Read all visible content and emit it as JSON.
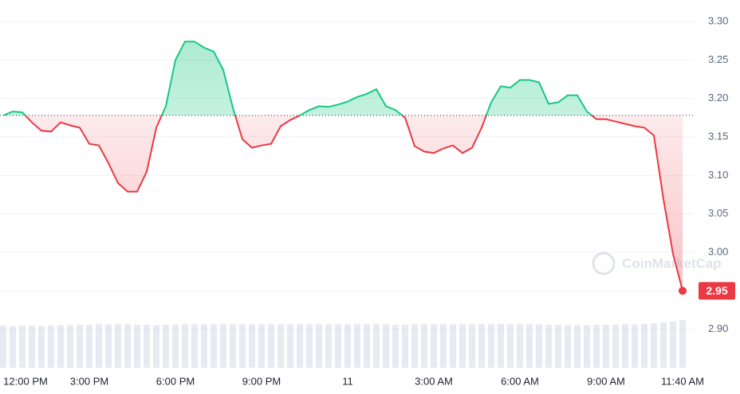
{
  "chart_data": {
    "type": "line",
    "categories": [
      "12:00 PM",
      null,
      null,
      null,
      null,
      null,
      null,
      null,
      null,
      "3:00 PM",
      null,
      null,
      null,
      null,
      null,
      null,
      null,
      null,
      "6:00 PM",
      null,
      null,
      null,
      null,
      null,
      null,
      null,
      null,
      "9:00 PM",
      null,
      null,
      null,
      null,
      null,
      null,
      null,
      null,
      "11",
      null,
      null,
      null,
      null,
      null,
      null,
      null,
      null,
      "3:00 AM",
      null,
      null,
      null,
      null,
      null,
      null,
      null,
      null,
      "6:00 AM",
      null,
      null,
      null,
      null,
      null,
      null,
      null,
      null,
      "9:00 AM",
      null,
      null,
      null,
      null,
      null,
      null,
      null,
      "11:40 AM"
    ],
    "values": [
      3.178,
      3.183,
      3.182,
      3.169,
      3.158,
      3.157,
      3.169,
      3.165,
      3.162,
      3.141,
      3.139,
      3.116,
      3.09,
      3.079,
      3.079,
      3.105,
      3.162,
      3.19,
      3.25,
      3.274,
      3.274,
      3.266,
      3.261,
      3.237,
      3.188,
      3.147,
      3.136,
      3.139,
      3.141,
      3.164,
      3.172,
      3.178,
      3.185,
      3.19,
      3.189,
      3.192,
      3.196,
      3.202,
      3.206,
      3.212,
      3.19,
      3.185,
      3.175,
      3.138,
      3.131,
      3.129,
      3.135,
      3.139,
      3.129,
      3.136,
      3.162,
      3.195,
      3.216,
      3.214,
      3.224,
      3.224,
      3.221,
      3.193,
      3.195,
      3.204,
      3.204,
      3.183,
      3.173,
      3.173,
      3.17,
      3.167,
      3.164,
      3.162,
      3.152,
      3.069,
      2.998,
      2.95
    ],
    "baseline": 3.178,
    "up_color": "#16c784",
    "down_color": "#ea3943",
    "last_label": "2.95",
    "volume": [
      88,
      87,
      88,
      88,
      87,
      88,
      89,
      89,
      90,
      90,
      91,
      91,
      92,
      91,
      90,
      90,
      89,
      90,
      90,
      91,
      91,
      91,
      91,
      91,
      91,
      91,
      91,
      91,
      91,
      91,
      91,
      91,
      91,
      91,
      91,
      91,
      91,
      91,
      91,
      91,
      91,
      90,
      90,
      91,
      91,
      91,
      91,
      91,
      91,
      91,
      92,
      92,
      92,
      91,
      91,
      91,
      91,
      90,
      90,
      89,
      89,
      89,
      90,
      90,
      90,
      91,
      91,
      92,
      93,
      95,
      97,
      100
    ],
    "volume_lim": [
      0,
      100
    ],
    "volume_color": "#cfd6e4",
    "ylim": [
      2.85,
      3.328
    ],
    "yticks": [
      {
        "value": 2.9,
        "label": "2.90"
      },
      {
        "value": 2.95,
        "label": "2.95"
      },
      {
        "value": 3.0,
        "label": "3.00"
      },
      {
        "value": 3.05,
        "label": "3.05"
      },
      {
        "value": 3.1,
        "label": "3.10"
      },
      {
        "value": 3.15,
        "label": "3.15"
      },
      {
        "value": 3.2,
        "label": "3.20"
      },
      {
        "value": 3.25,
        "label": "3.25"
      },
      {
        "value": 3.3,
        "label": "3.30"
      }
    ],
    "grid": true,
    "watermark": "CoinMarketCap"
  }
}
